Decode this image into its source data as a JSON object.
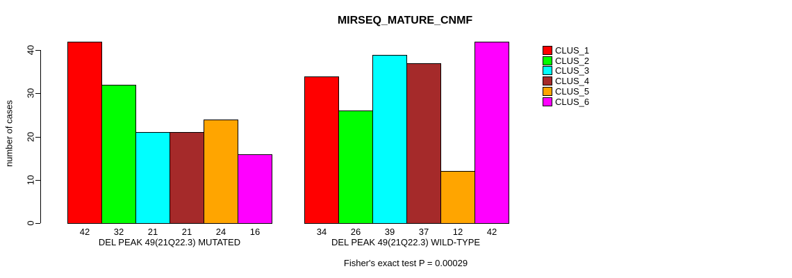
{
  "chart_data": {
    "type": "bar",
    "title": "MIRSEQ_MATURE_CNMF",
    "ylabel": "number of cases",
    "yticks": [
      0,
      10,
      20,
      30,
      40
    ],
    "ylim": [
      0,
      42
    ],
    "grid": false,
    "legend_position": "right",
    "clusters": [
      {
        "label": "CLUS_1",
        "color": "#FF0000"
      },
      {
        "label": "CLUS_2",
        "color": "#00FF00"
      },
      {
        "label": "CLUS_3",
        "color": "#00FFFF"
      },
      {
        "label": "CLUS_4",
        "color": "#A52A2A"
      },
      {
        "label": "CLUS_5",
        "color": "#FFA500"
      },
      {
        "label": "CLUS_6",
        "color": "#FF00FF"
      }
    ],
    "groups": [
      {
        "label": "DEL PEAK 49(21Q22.3) MUTATED",
        "values": [
          42,
          32,
          21,
          21,
          24,
          16
        ]
      },
      {
        "label": "DEL PEAK 49(21Q22.3) WILD-TYPE",
        "values": [
          34,
          26,
          39,
          37,
          12,
          42
        ]
      }
    ],
    "annotation": "Fisher's exact test P = 0.00029",
    "bar_outline_color": "#000000"
  }
}
